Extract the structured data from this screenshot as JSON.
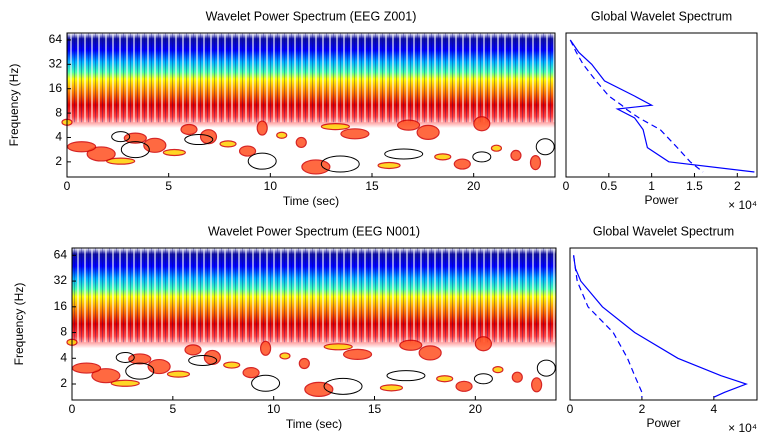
{
  "chart_data": [
    {
      "type": "heatmap",
      "title": "Wavelet Power Spectrum (EEG Z001)",
      "xlabel": "Time (sec)",
      "ylabel": "Frequency (Hz)",
      "xlim": [
        0,
        24
      ],
      "xticks": [
        0,
        5,
        10,
        15,
        20
      ],
      "ylim": [
        1.3,
        78
      ],
      "yticks": [
        2,
        4,
        8,
        16,
        32,
        64
      ],
      "log_scale_y": true
    },
    {
      "type": "line",
      "title": "Global Wavelet Spectrum",
      "xlabel": "Power",
      "x_multiplier": "× 10⁴",
      "xlim": [
        0,
        2.23
      ],
      "xticks": [
        0,
        0.5,
        1,
        1.5,
        2
      ],
      "ylim": [
        1.3,
        78
      ],
      "log_scale_y": true,
      "frequencies": [
        64,
        45,
        32,
        20,
        13,
        10,
        9,
        7,
        5,
        3,
        2,
        1.5
      ],
      "series": [
        {
          "color": "#0000ff",
          "style": "solid",
          "values": [
            0.05,
            0.15,
            0.3,
            0.45,
            0.8,
            1.0,
            0.6,
            0.8,
            0.9,
            0.95,
            1.2,
            2.2
          ]
        },
        {
          "color": "#0000ff",
          "style": "dashed",
          "values": [
            0.05,
            0.12,
            0.2,
            0.35,
            0.5,
            0.65,
            0.7,
            0.85,
            1.1,
            1.3,
            1.45,
            1.6
          ]
        }
      ]
    },
    {
      "type": "heatmap",
      "title": "Wavelet Power Spectrum (EEG N001)",
      "xlabel": "Time (sec)",
      "ylabel": "Frequency (Hz)",
      "xlim": [
        0,
        24
      ],
      "xticks": [
        0,
        5,
        10,
        15,
        20
      ],
      "ylim": [
        1.3,
        78
      ],
      "yticks": [
        2,
        4,
        8,
        16,
        32,
        64
      ],
      "log_scale_y": true
    },
    {
      "type": "line",
      "title": "Global Wavelet Spectrum",
      "xlabel": "Power",
      "x_multiplier": "× 10⁴",
      "xlim": [
        0,
        5.2
      ],
      "xticks": [
        0,
        2,
        4
      ],
      "ylim": [
        1.3,
        78
      ],
      "log_scale_y": true,
      "frequencies": [
        64,
        45,
        32,
        16,
        8,
        4,
        2.5,
        2,
        1.6,
        1.4
      ],
      "series": [
        {
          "color": "#0000ff",
          "style": "solid",
          "values": [
            0.1,
            0.15,
            0.3,
            0.9,
            1.8,
            3.0,
            4.2,
            4.9,
            4.3,
            4.0
          ]
        },
        {
          "color": "#0000ff",
          "style": "dashed",
          "values": [
            0.1,
            0.15,
            0.2,
            0.5,
            1.2,
            1.6,
            1.8,
            1.9,
            2.0,
            2.0
          ]
        }
      ]
    }
  ]
}
